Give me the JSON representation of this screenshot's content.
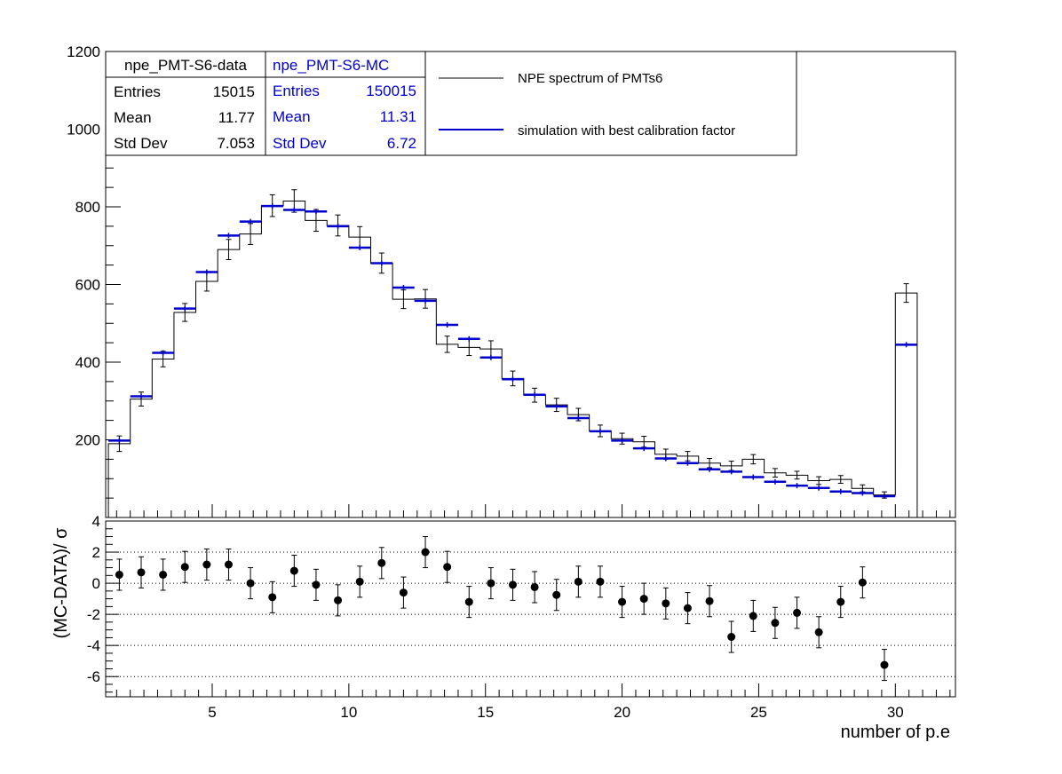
{
  "chart_data": [
    {
      "type": "histogram-overlay",
      "x_range": [
        1.1,
        32.2
      ],
      "y_range": [
        0,
        1200
      ],
      "y_ticks": [
        200,
        400,
        600,
        800,
        1000,
        1200
      ],
      "bin_width": 0.8,
      "x_start": 1.2,
      "series": [
        {
          "name": "NPE spectrum of PMTs6",
          "color": "#000000",
          "style": "step-errorbars",
          "values": [
            190,
            305,
            408,
            528,
            608,
            690,
            730,
            803,
            815,
            765,
            752,
            722,
            655,
            562,
            563,
            446,
            438,
            434,
            358,
            315,
            290,
            265,
            223,
            203,
            195,
            163,
            158,
            140,
            133,
            150,
            115,
            109,
            95,
            98,
            75,
            58,
            578
          ],
          "errors": [
            20,
            18,
            20,
            23,
            25,
            26,
            27,
            28,
            29,
            28,
            27,
            27,
            26,
            24,
            24,
            21,
            21,
            21,
            19,
            18,
            17,
            16,
            15,
            14,
            14,
            13,
            12,
            12,
            12,
            12,
            11,
            10,
            10,
            10,
            9,
            8,
            24
          ]
        },
        {
          "name": "simulation with best calibration factor",
          "color": "#0000cc",
          "style": "horizontal-bins",
          "values": [
            198,
            312,
            424,
            538,
            632,
            726,
            762,
            802,
            792,
            788,
            750,
            695,
            655,
            592,
            558,
            496,
            460,
            412,
            356,
            316,
            286,
            256,
            222,
            198,
            178,
            152,
            140,
            124,
            118,
            104,
            92,
            82,
            76,
            67,
            63,
            55,
            445
          ]
        }
      ],
      "legend": [
        {
          "label": "NPE spectrum of PMTs6",
          "color": "#000000"
        },
        {
          "label": "simulation with best calibration factor",
          "color": "#0000cc"
        }
      ],
      "stats": [
        {
          "title": "npe_PMT-S6-data",
          "color": "#000000",
          "rows": [
            [
              "Entries",
              "15015"
            ],
            [
              "Mean",
              "11.77"
            ],
            [
              "Std Dev",
              "7.053"
            ]
          ]
        },
        {
          "title": "npe_PMT-S6-MC",
          "color": "#0000cc",
          "rows": [
            [
              "Entries",
              "150015"
            ],
            [
              "Mean",
              "11.31"
            ],
            [
              "Std Dev",
              "6.72"
            ]
          ]
        }
      ]
    },
    {
      "type": "scatter-errorbars",
      "x_range": [
        1.1,
        32.2
      ],
      "y_range": [
        -7.3,
        4.0
      ],
      "x_ticks": [
        5,
        10,
        15,
        20,
        25,
        30
      ],
      "y_ticks": [
        -6,
        -4,
        -2,
        0,
        2,
        4
      ],
      "ylabel": "(MC-DATA)/ σ",
      "xlabel": "number of p.e",
      "grid_y": [
        -6,
        -4,
        -2,
        0,
        2
      ],
      "x": [
        1.6,
        2.4,
        3.2,
        4.0,
        4.8,
        5.6,
        6.4,
        7.2,
        8.0,
        8.8,
        9.6,
        10.4,
        11.2,
        12.0,
        12.8,
        13.6,
        14.4,
        15.2,
        16.0,
        16.8,
        17.6,
        18.4,
        19.2,
        20.0,
        20.8,
        21.6,
        22.4,
        23.2,
        24.0,
        24.8,
        25.6,
        26.4,
        27.2,
        28.0,
        28.8,
        29.6
      ],
      "values": [
        0.55,
        0.7,
        0.55,
        1.05,
        1.2,
        1.2,
        0.0,
        -0.9,
        0.8,
        -0.1,
        -1.1,
        0.1,
        1.3,
        -0.6,
        2.0,
        1.05,
        -1.2,
        0.0,
        -0.1,
        -0.25,
        -0.75,
        0.1,
        0.1,
        -1.2,
        -1.0,
        -1.3,
        -1.6,
        -1.15,
        -3.45,
        -2.1,
        -2.55,
        -1.9,
        -3.15,
        -1.2,
        0.05,
        -5.25
      ],
      "errors": [
        1.0,
        1.0,
        1.0,
        1.0,
        1.0,
        1.0,
        1.0,
        1.0,
        1.0,
        1.0,
        1.0,
        1.0,
        1.0,
        1.0,
        1.0,
        1.0,
        1.0,
        1.0,
        1.0,
        1.0,
        1.0,
        1.0,
        1.0,
        1.0,
        1.0,
        1.0,
        1.0,
        1.0,
        1.0,
        1.0,
        1.0,
        1.0,
        1.0,
        1.0,
        1.0,
        1.0
      ]
    }
  ]
}
